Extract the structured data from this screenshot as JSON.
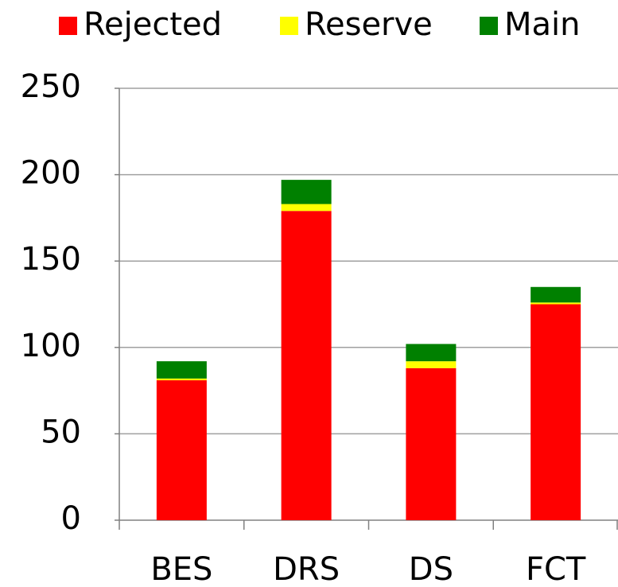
{
  "chart_data": {
    "type": "stacked_bar",
    "categories": [
      "BES",
      "DRS",
      "DS",
      "FCT"
    ],
    "series": [
      {
        "name": "Rejected",
        "color": "#ff0000",
        "values": [
          81,
          179,
          88,
          125
        ]
      },
      {
        "name": "Reserve",
        "color": "#ffff00",
        "values": [
          1,
          4,
          4,
          1
        ]
      },
      {
        "name": "Main",
        "color": "#008000",
        "values": [
          10,
          14,
          10,
          9
        ]
      }
    ],
    "ylim": [
      0,
      250
    ],
    "yticks": [
      0,
      50,
      100,
      150,
      200,
      250
    ],
    "grid": true,
    "legend": "top"
  }
}
